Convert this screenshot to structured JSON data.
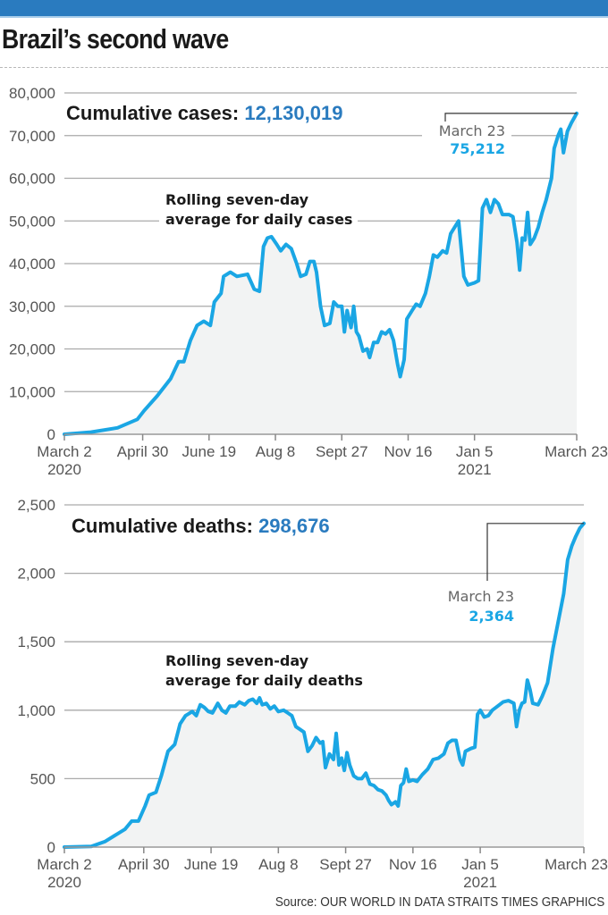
{
  "header": {
    "title": "Brazil’s second wave"
  },
  "footer": {
    "source": "Source: OUR WORLD IN DATA   STRAITS TIMES GRAPHICS"
  },
  "colors": {
    "bar": "#2a7bbf",
    "line": "#1aa6e4",
    "fill": "#f2f3f3",
    "grid": "#aaaaaa",
    "heading_value": "#2a7bbf"
  },
  "chart_data": [
    {
      "type": "area",
      "title": "Cumulative cases:",
      "title_value": "12,130,019",
      "note_lines": [
        "Rolling seven-day",
        "average for daily cases"
      ],
      "xlabel": "",
      "ylabel": "",
      "x_unit": "days since March 2 2020",
      "xlim": [
        0,
        386
      ],
      "ylim": [
        0,
        80000
      ],
      "y_ticks": [
        0,
        10000,
        20000,
        30000,
        40000,
        50000,
        60000,
        70000,
        80000
      ],
      "y_tick_labels": [
        "0",
        "10,000",
        "20,000",
        "30,000",
        "40,000",
        "50,000",
        "60,000",
        "70,000",
        "80,000"
      ],
      "x_ticks": [
        0,
        59,
        109,
        159,
        209,
        259,
        309,
        386
      ],
      "x_tick_labels": [
        [
          "March 2",
          "2020"
        ],
        [
          "April 30"
        ],
        [
          "June 19"
        ],
        [
          "Aug 8"
        ],
        [
          "Sept 27"
        ],
        [
          "Nov 16"
        ],
        [
          "Jan 5",
          "2021"
        ],
        [
          "March 23"
        ]
      ],
      "grid": true,
      "annotation": {
        "date": "March 23",
        "value": "75,212"
      },
      "series": [
        {
          "name": "Rolling seven-day average for daily cases",
          "x": [
            0,
            20,
            40,
            55,
            60,
            70,
            80,
            86,
            90,
            95,
            100,
            105,
            110,
            113,
            118,
            120,
            125,
            130,
            138,
            143,
            147,
            150,
            153,
            156,
            160,
            163,
            167,
            171,
            175,
            178,
            182,
            185,
            188,
            190,
            193,
            196,
            200,
            203,
            206,
            209,
            211,
            213,
            216,
            218,
            220,
            222,
            225,
            228,
            230,
            233,
            236,
            239,
            242,
            245,
            248,
            251,
            253,
            256,
            258,
            262,
            265,
            268,
            272,
            275,
            278,
            281,
            285,
            288,
            291,
            295,
            297,
            301,
            304,
            309,
            312,
            315,
            318,
            321,
            324,
            327,
            330,
            335,
            338,
            341,
            343,
            345,
            347,
            349,
            351,
            354,
            357,
            360,
            363,
            367,
            369,
            372,
            374,
            376,
            379,
            382,
            386
          ],
          "values": [
            0,
            500,
            1500,
            3500,
            5500,
            9000,
            13000,
            17000,
            17000,
            22000,
            25500,
            26500,
            25500,
            31000,
            33000,
            37000,
            38000,
            37000,
            37500,
            34000,
            33500,
            44000,
            46000,
            46300,
            44500,
            43000,
            44500,
            43500,
            40000,
            37000,
            37500,
            40500,
            40500,
            38000,
            30000,
            25500,
            26000,
            31000,
            30000,
            30000,
            24000,
            29000,
            25000,
            30000,
            24000,
            23000,
            19500,
            20000,
            18000,
            21500,
            21500,
            24000,
            23500,
            24500,
            22000,
            16500,
            13500,
            17500,
            27000,
            29000,
            30500,
            30000,
            33000,
            37000,
            42000,
            41500,
            43000,
            42500,
            47000,
            49000,
            50000,
            37000,
            35000,
            35500,
            36000,
            53000,
            55000,
            52000,
            55000,
            54000,
            51500,
            51500,
            51000,
            45000,
            38500,
            46000,
            45500,
            52000,
            44500,
            46000,
            48500,
            52000,
            55000,
            60000,
            67000,
            70000,
            71500,
            66000,
            71000,
            73000,
            75212
          ]
        }
      ]
    },
    {
      "type": "area",
      "title": "Cumulative deaths:",
      "title_value": "298,676",
      "note_lines": [
        "Rolling seven-day",
        "average for daily deaths"
      ],
      "xlabel": "",
      "ylabel": "",
      "x_unit": "days since March 2 2020",
      "xlim": [
        0,
        386
      ],
      "ylim": [
        0,
        2500
      ],
      "y_ticks": [
        0,
        500,
        1000,
        1500,
        2000,
        2500
      ],
      "y_tick_labels": [
        "0",
        "500",
        "1,000",
        "1,500",
        "2,000",
        "2,500"
      ],
      "x_ticks": [
        0,
        59,
        109,
        159,
        209,
        259,
        309,
        386
      ],
      "x_tick_labels": [
        [
          "March 2",
          "2020"
        ],
        [
          "April 30"
        ],
        [
          "June 19"
        ],
        [
          "Aug 8"
        ],
        [
          "Sept 27"
        ],
        [
          "Nov 16"
        ],
        [
          "Jan 5",
          "2021"
        ],
        [
          "March 23"
        ]
      ],
      "grid": true,
      "annotation": {
        "date": "March 23",
        "value": "2,364"
      },
      "series": [
        {
          "name": "Rolling seven-day average for daily deaths",
          "x": [
            0,
            20,
            30,
            40,
            45,
            50,
            55,
            60,
            63,
            68,
            72,
            77,
            82,
            86,
            90,
            95,
            98,
            101,
            104,
            107,
            110,
            114,
            117,
            120,
            123,
            127,
            130,
            134,
            137,
            140,
            143,
            145,
            147,
            150,
            153,
            156,
            159,
            163,
            166,
            169,
            172,
            175,
            178,
            181,
            184,
            187,
            190,
            192,
            194,
            197,
            200,
            202,
            204,
            206,
            208,
            210,
            212,
            215,
            218,
            221,
            224,
            227,
            230,
            233,
            236,
            239,
            241,
            243,
            246,
            248,
            250,
            252,
            254,
            256,
            259,
            262,
            266,
            270,
            274,
            278,
            282,
            285,
            288,
            291,
            294,
            296,
            298,
            302,
            305,
            307,
            309,
            312,
            315,
            318,
            322,
            326,
            330,
            334,
            336,
            338,
            340,
            342,
            344,
            346,
            348,
            352,
            355,
            359,
            363,
            367,
            371,
            374,
            377,
            380,
            383,
            386
          ],
          "values": [
            0,
            5,
            40,
            100,
            130,
            190,
            190,
            300,
            380,
            400,
            520,
            700,
            750,
            900,
            960,
            990,
            960,
            1040,
            1020,
            990,
            980,
            1050,
            1000,
            980,
            1030,
            1030,
            1060,
            1040,
            1070,
            1080,
            1050,
            1090,
            1040,
            1050,
            1010,
            1030,
            990,
            1000,
            980,
            960,
            880,
            860,
            840,
            700,
            740,
            800,
            760,
            770,
            580,
            680,
            640,
            830,
            600,
            650,
            560,
            690,
            600,
            520,
            500,
            500,
            540,
            460,
            450,
            420,
            410,
            380,
            340,
            310,
            330,
            300,
            450,
            470,
            570,
            480,
            490,
            480,
            530,
            570,
            640,
            650,
            680,
            760,
            780,
            780,
            640,
            600,
            700,
            720,
            730,
            970,
            1000,
            950,
            960,
            1000,
            1030,
            1060,
            1070,
            1050,
            880,
            1000,
            1050,
            1060,
            1220,
            1150,
            1050,
            1040,
            1100,
            1200,
            1450,
            1650,
            1850,
            2100,
            2200,
            2270,
            2330,
            2364
          ]
        }
      ]
    }
  ]
}
